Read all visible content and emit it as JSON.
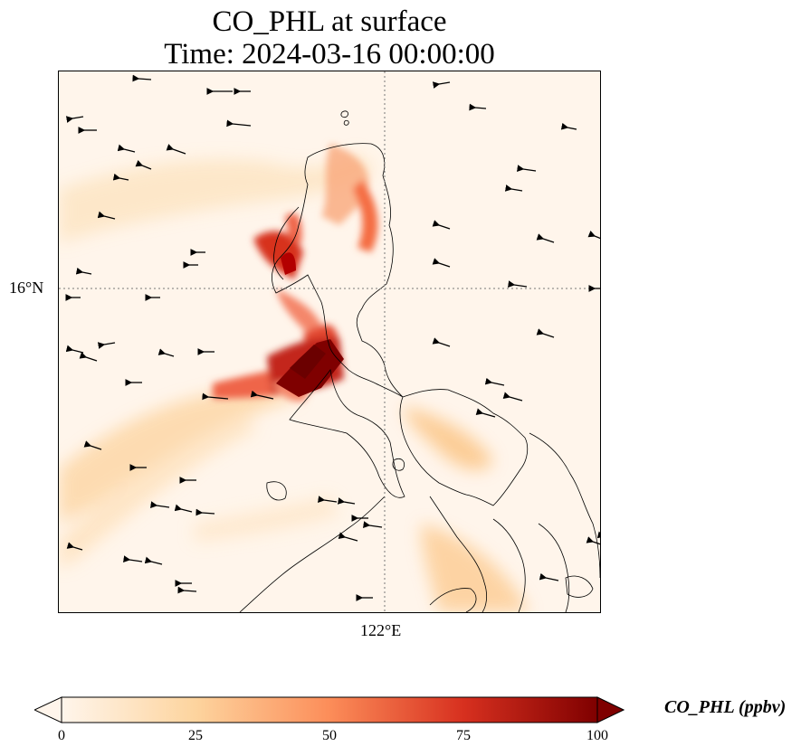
{
  "title_line1": "CO_PHL at surface",
  "title_line2": "Time: 2024-03-16 00:00:00",
  "map": {
    "gridlines": {
      "longitude_label": "122°E",
      "latitude_label": "16°N",
      "style": "dotted"
    },
    "field": "CO_PHL",
    "wind_vectors": true,
    "coastlines": true
  },
  "colorbar": {
    "label": "CO_PHL (ppbv)",
    "ticks": [
      "0",
      "25",
      "50",
      "75",
      "100"
    ],
    "tick_values": [
      0,
      25,
      50,
      75,
      100
    ],
    "min": 0,
    "max": 100,
    "extend": "both",
    "colormap": "OrRd",
    "colors": [
      "#fff5eb",
      "#fdd49e",
      "#fc8d59",
      "#d7301f",
      "#7f0000"
    ]
  }
}
